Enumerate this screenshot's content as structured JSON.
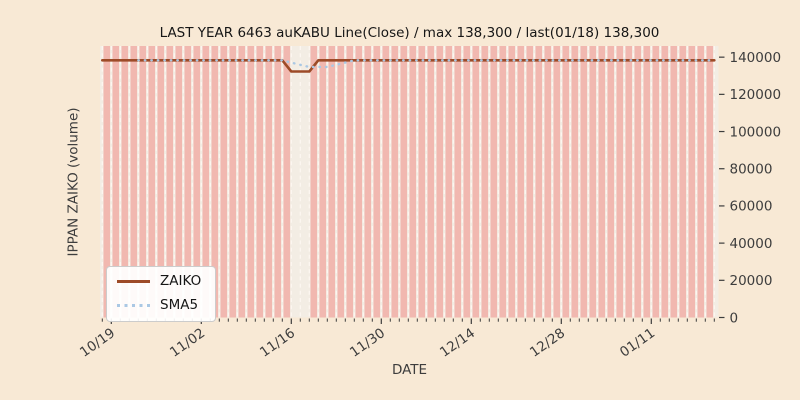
{
  "chart_data": {
    "type": "bar+line",
    "title": "LAST YEAR 6463 auKABU Line(Close) / max 138,300 / last(01/18) 138,300",
    "xlabel": "DATE",
    "ylabel": "IPPAN ZAIKO (volume)",
    "max_value_label": "138,300",
    "last_date_label": "last(01/18)",
    "last_value_label": "138,300",
    "x_tick_labels": [
      "10/19",
      "11/02",
      "11/16",
      "11/30",
      "12/14",
      "12/28",
      "01/11"
    ],
    "x_tick_indices": [
      1,
      11,
      21,
      31,
      41,
      51,
      61
    ],
    "y_ticks": [
      0,
      20000,
      40000,
      60000,
      80000,
      100000,
      120000,
      140000
    ],
    "ylim": [
      0,
      146000
    ],
    "grid": "vertical dashed white lines at every trading day, no horizontal grid",
    "legend_position": "lower left",
    "series": [
      {
        "name": "ZAIKO",
        "type": "line",
        "color": "#9d4b28",
        "values": [
          138300,
          138300,
          138300,
          138300,
          138300,
          138300,
          138300,
          138300,
          138300,
          138300,
          138300,
          138300,
          138300,
          138300,
          138300,
          138300,
          138300,
          138300,
          138300,
          138300,
          138300,
          132300,
          132300,
          132300,
          138300,
          138300,
          138300,
          138300,
          138300,
          138300,
          138300,
          138300,
          138300,
          138300,
          138300,
          138300,
          138300,
          138300,
          138300,
          138300,
          138300,
          138300,
          138300,
          138300,
          138300,
          138300,
          138300,
          138300,
          138300,
          138300,
          138300,
          138300,
          138300,
          138300,
          138300,
          138300,
          138300,
          138300,
          138300,
          138300,
          138300,
          138300,
          138300,
          138300,
          138300,
          138300,
          138300,
          138300,
          138300
        ]
      },
      {
        "name": "SMA5",
        "type": "dotted-line",
        "color": "#aac8e4",
        "derived": "5-day moving average of ZAIKO"
      }
    ],
    "day_bands": {
      "count": 68,
      "missing_indices": [
        21,
        22
      ],
      "color": "#f1b8b0",
      "note": "full-height pink band for each trading day; gap around 11/16-11/17"
    }
  },
  "colors": {
    "figure_background": "#f8e9d5",
    "plot_background": "#f3ede4",
    "band_pink": "#f1b8b0",
    "grid_dash": "#fcf7f0",
    "zaiko_line": "#9d4b28",
    "sma5_dots": "#aac8e4",
    "tick_text": "#3d3d3d",
    "title_text": "#161616"
  },
  "legend": {
    "items": [
      {
        "label": "ZAIKO"
      },
      {
        "label": "SMA5"
      }
    ]
  }
}
